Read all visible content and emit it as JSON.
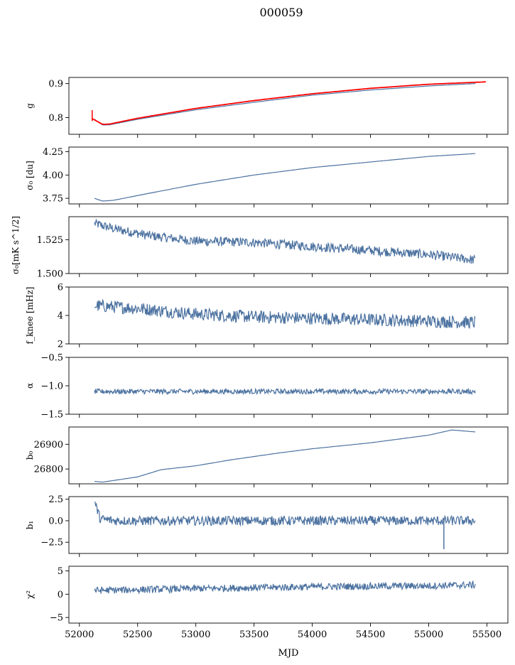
{
  "title": "000059",
  "xlabel": "MJD",
  "colors": {
    "series": "#4c72a0",
    "overlay": "#ff0000",
    "axis": "#000000"
  },
  "chart_data": {
    "type": "line",
    "x_range": [
      51910,
      55680
    ],
    "x_ticks": [
      "52000",
      "52500",
      "53000",
      "53500",
      "54000",
      "54500",
      "55000",
      "55500"
    ],
    "x_tick_values": [
      52000,
      52500,
      53000,
      53500,
      54000,
      54500,
      55000,
      55500
    ],
    "x_start": 52130,
    "x_end": 55400,
    "panels": [
      {
        "ylabel": "g",
        "ylim": [
          0.751,
          0.918
        ],
        "yticks": [
          0.8,
          0.9
        ],
        "ytick_labels": [
          "0.8",
          "0.9"
        ],
        "series": [
          {
            "color": "#4c72a0",
            "kind": "smooth",
            "points": [
              [
                52130,
                0.795
              ],
              [
                52200,
                0.778
              ],
              [
                52260,
                0.779
              ],
              [
                52500,
                0.795
              ],
              [
                53000,
                0.823
              ],
              [
                53500,
                0.845
              ],
              [
                54000,
                0.866
              ],
              [
                54500,
                0.881
              ],
              [
                55000,
                0.893
              ],
              [
                55400,
                0.9
              ]
            ]
          },
          {
            "color": "#ff0000",
            "kind": "smooth",
            "spike": [
              52110,
              0.822,
              0.79
            ],
            "points": [
              [
                52110,
                0.797
              ],
              [
                52200,
                0.78
              ],
              [
                52260,
                0.781
              ],
              [
                52500,
                0.798
              ],
              [
                53000,
                0.827
              ],
              [
                53500,
                0.85
              ],
              [
                54000,
                0.87
              ],
              [
                54500,
                0.886
              ],
              [
                55000,
                0.898
              ],
              [
                55490,
                0.905
              ]
            ]
          }
        ]
      },
      {
        "ylabel": "σ₀ [du]",
        "ylim": [
          3.69,
          4.3
        ],
        "yticks": [
          3.75,
          4.0,
          4.25
        ],
        "ytick_labels": [
          "3.75",
          "4.00",
          "4.25"
        ],
        "series": [
          {
            "color": "#4c72a0",
            "kind": "smooth",
            "points": [
              [
                52130,
                3.75
              ],
              [
                52200,
                3.72
              ],
              [
                52300,
                3.73
              ],
              [
                52500,
                3.78
              ],
              [
                53000,
                3.9
              ],
              [
                53500,
                4.0
              ],
              [
                54000,
                4.08
              ],
              [
                54500,
                4.14
              ],
              [
                55000,
                4.2
              ],
              [
                55400,
                4.23
              ]
            ]
          }
        ]
      },
      {
        "ylabel": "σ₀[mK s^1/2]",
        "ylim": [
          1.5,
          1.542
        ],
        "yticks": [
          1.5,
          1.525
        ],
        "ytick_labels": [
          "1.500",
          "1.525"
        ],
        "series": [
          {
            "color": "#4c72a0",
            "kind": "noisy",
            "noise": 0.0035,
            "points": [
              [
                52130,
                1.537
              ],
              [
                52300,
                1.533
              ],
              [
                52600,
                1.528
              ],
              [
                53000,
                1.524
              ],
              [
                53500,
                1.523
              ],
              [
                54000,
                1.52
              ],
              [
                54500,
                1.517
              ],
              [
                55000,
                1.514
              ],
              [
                55400,
                1.51
              ]
            ]
          }
        ]
      },
      {
        "ylabel": "f_knee [mHz]",
        "ylim": [
          2,
          6
        ],
        "yticks": [
          2,
          4,
          6
        ],
        "ytick_labels": [
          "2",
          "4",
          "6"
        ],
        "series": [
          {
            "color": "#4c72a0",
            "kind": "noisy",
            "noise": 0.45,
            "points": [
              [
                52130,
                4.7
              ],
              [
                52500,
                4.5
              ],
              [
                53000,
                4.1
              ],
              [
                53500,
                3.9
              ],
              [
                54000,
                3.8
              ],
              [
                54500,
                3.7
              ],
              [
                55000,
                3.6
              ],
              [
                55400,
                3.5
              ]
            ]
          }
        ]
      },
      {
        "ylabel": "α",
        "ylim": [
          -1.5,
          -0.5
        ],
        "yticks": [
          -1.5,
          -1.0,
          -0.5
        ],
        "ytick_labels": [
          "−1.5",
          "−1.0",
          "−0.5"
        ],
        "series": [
          {
            "color": "#4c72a0",
            "kind": "noisy",
            "noise": 0.045,
            "points": [
              [
                52130,
                -1.1
              ],
              [
                55400,
                -1.1
              ]
            ]
          }
        ]
      },
      {
        "ylabel": "b₀",
        "ylim": [
          26740,
          26970
        ],
        "yticks": [
          26800,
          26900
        ],
        "ytick_labels": [
          "26800",
          "26900"
        ],
        "series": [
          {
            "color": "#4c72a0",
            "kind": "smooth",
            "points": [
              [
                52130,
                26750
              ],
              [
                52200,
                26747
              ],
              [
                52500,
                26768
              ],
              [
                52700,
                26797
              ],
              [
                53000,
                26813
              ],
              [
                53300,
                26837
              ],
              [
                53700,
                26864
              ],
              [
                54000,
                26882
              ],
              [
                54500,
                26906
              ],
              [
                55000,
                26937
              ],
              [
                55200,
                26958
              ],
              [
                55400,
                26950
              ]
            ]
          }
        ]
      },
      {
        "ylabel": "b₁",
        "ylim": [
          -3.8,
          2.8
        ],
        "yticks": [
          -2.5,
          0.0,
          2.5
        ],
        "ytick_labels": [
          "−2.5",
          "0.0",
          "2.5"
        ],
        "series": [
          {
            "color": "#4c72a0",
            "kind": "noisy",
            "noise": 0.55,
            "spike": [
              55130,
              -3.3,
              0.0
            ],
            "points": [
              [
                52130,
                2.2
              ],
              [
                52180,
                0.2
              ],
              [
                52300,
                0.0
              ],
              [
                55400,
                0.0
              ]
            ]
          }
        ]
      },
      {
        "ylabel": "χ²",
        "ylim": [
          -6.2,
          6.0
        ],
        "yticks": [
          -5,
          0,
          5
        ],
        "ytick_labels": [
          "−5",
          "0",
          "5"
        ],
        "series": [
          {
            "color": "#4c72a0",
            "kind": "noisy",
            "noise": 0.75,
            "points": [
              [
                52130,
                0.8
              ],
              [
                53000,
                1.2
              ],
              [
                54000,
                1.6
              ],
              [
                55000,
                1.8
              ],
              [
                55400,
                2.0
              ]
            ]
          }
        ]
      }
    ]
  }
}
